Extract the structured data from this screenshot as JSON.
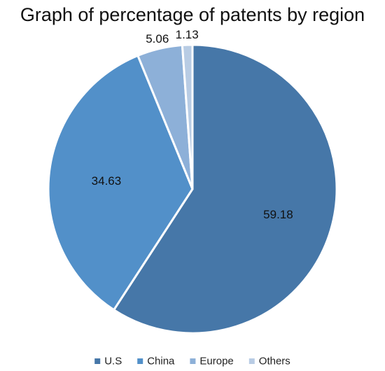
{
  "chart_data": {
    "type": "pie",
    "title": "Graph of percentage of patents by region",
    "categories": [
      "U.S",
      "China",
      "Europe",
      "Others"
    ],
    "values": [
      59.18,
      34.63,
      5.06,
      1.13
    ],
    "data_labels": [
      "59.18",
      "34.63",
      "5.06",
      "1.13"
    ],
    "colors": [
      "#4677a8",
      "#5290c9",
      "#8db0d8",
      "#b8cce4"
    ],
    "slice_border_color": "#ffffff",
    "start_angle_deg": 0,
    "direction": "clockwise",
    "legend": {
      "position": "bottom",
      "items": [
        "U.S",
        "China",
        "Europe",
        "Others"
      ]
    }
  }
}
